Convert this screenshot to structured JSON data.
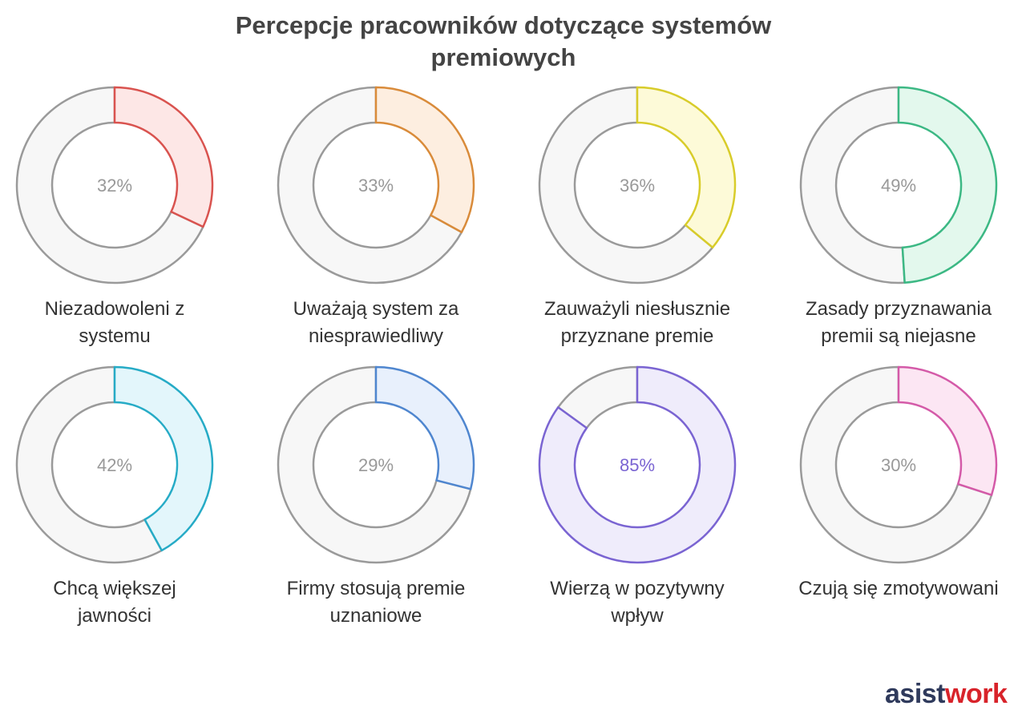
{
  "title": {
    "line1": "Percepcje pracowników dotyczące systemów",
    "line2": "premiowych"
  },
  "chart_data": {
    "type": "pie",
    "variant": "donut-grid",
    "title": "Percepcje pracowników dotyczące systemów premiowych",
    "unit": "%",
    "items": [
      {
        "label_lines": [
          "Niezadowoleni z",
          "systemu"
        ],
        "value": 32,
        "value_label": "32%",
        "stroke": "#d9534f",
        "fill": "#fde7e6",
        "text_color": "#999999"
      },
      {
        "label_lines": [
          "Uważają system za",
          "niesprawiedliwy"
        ],
        "value": 33,
        "value_label": "33%",
        "stroke": "#d98b3a",
        "fill": "#fdeee0",
        "text_color": "#999999"
      },
      {
        "label_lines": [
          "Zauważyli niesłusznie",
          "przyznane premie"
        ],
        "value": 36,
        "value_label": "36%",
        "stroke": "#d8cc2a",
        "fill": "#fdfad8",
        "text_color": "#999999"
      },
      {
        "label_lines": [
          "Zasady przyznawania",
          "premii są niejasne"
        ],
        "value": 49,
        "value_label": "49%",
        "stroke": "#3cb884",
        "fill": "#e3f8ed",
        "text_color": "#999999"
      },
      {
        "label_lines": [
          "Chcą większej",
          "jawności"
        ],
        "value": 42,
        "value_label": "42%",
        "stroke": "#26abc6",
        "fill": "#e3f6fb",
        "text_color": "#999999"
      },
      {
        "label_lines": [
          "Firmy stosują premie",
          "uznaniowe"
        ],
        "value": 29,
        "value_label": "29%",
        "stroke": "#4f86cf",
        "fill": "#e8f0fc",
        "text_color": "#999999"
      },
      {
        "label_lines": [
          "Wierzą w pozytywny",
          "wpływ"
        ],
        "value": 85,
        "value_label": "85%",
        "stroke": "#7a64d2",
        "fill": "#efecfb",
        "text_color": "#7a64d2"
      },
      {
        "label_lines": [
          "Czują się zmotywowani"
        ],
        "value": 30,
        "value_label": "30%",
        "stroke": "#d45aa8",
        "fill": "#fce6f3",
        "text_color": "#999999"
      }
    ],
    "track_fill": "#f7f7f7",
    "track_stroke": "#9a9a9a"
  },
  "branding": {
    "part1": "asist",
    "part2": "work"
  }
}
